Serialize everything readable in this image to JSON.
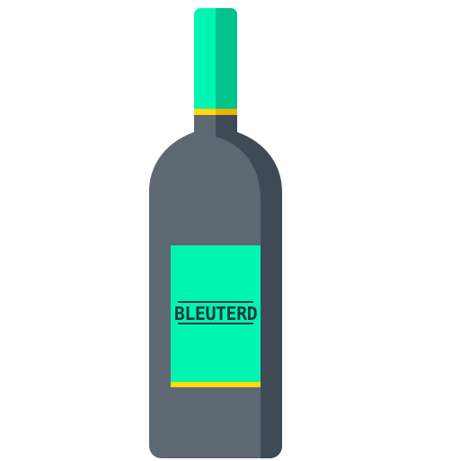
{
  "illustration": {
    "subject": "wine-bottle",
    "label_text": "BLEUTERD",
    "colors": {
      "background": "#ffffff",
      "cap": "#00f5b0",
      "cap_shade": "#00c38d",
      "band": "#ffd80d",
      "band_shade": "#e8b400",
      "bottle": "#5e6873",
      "bottle_shade": "#3e4a55",
      "label": "#00f5b0",
      "label_band": "#ffd80d",
      "label_text": "#1f3a3b"
    }
  }
}
